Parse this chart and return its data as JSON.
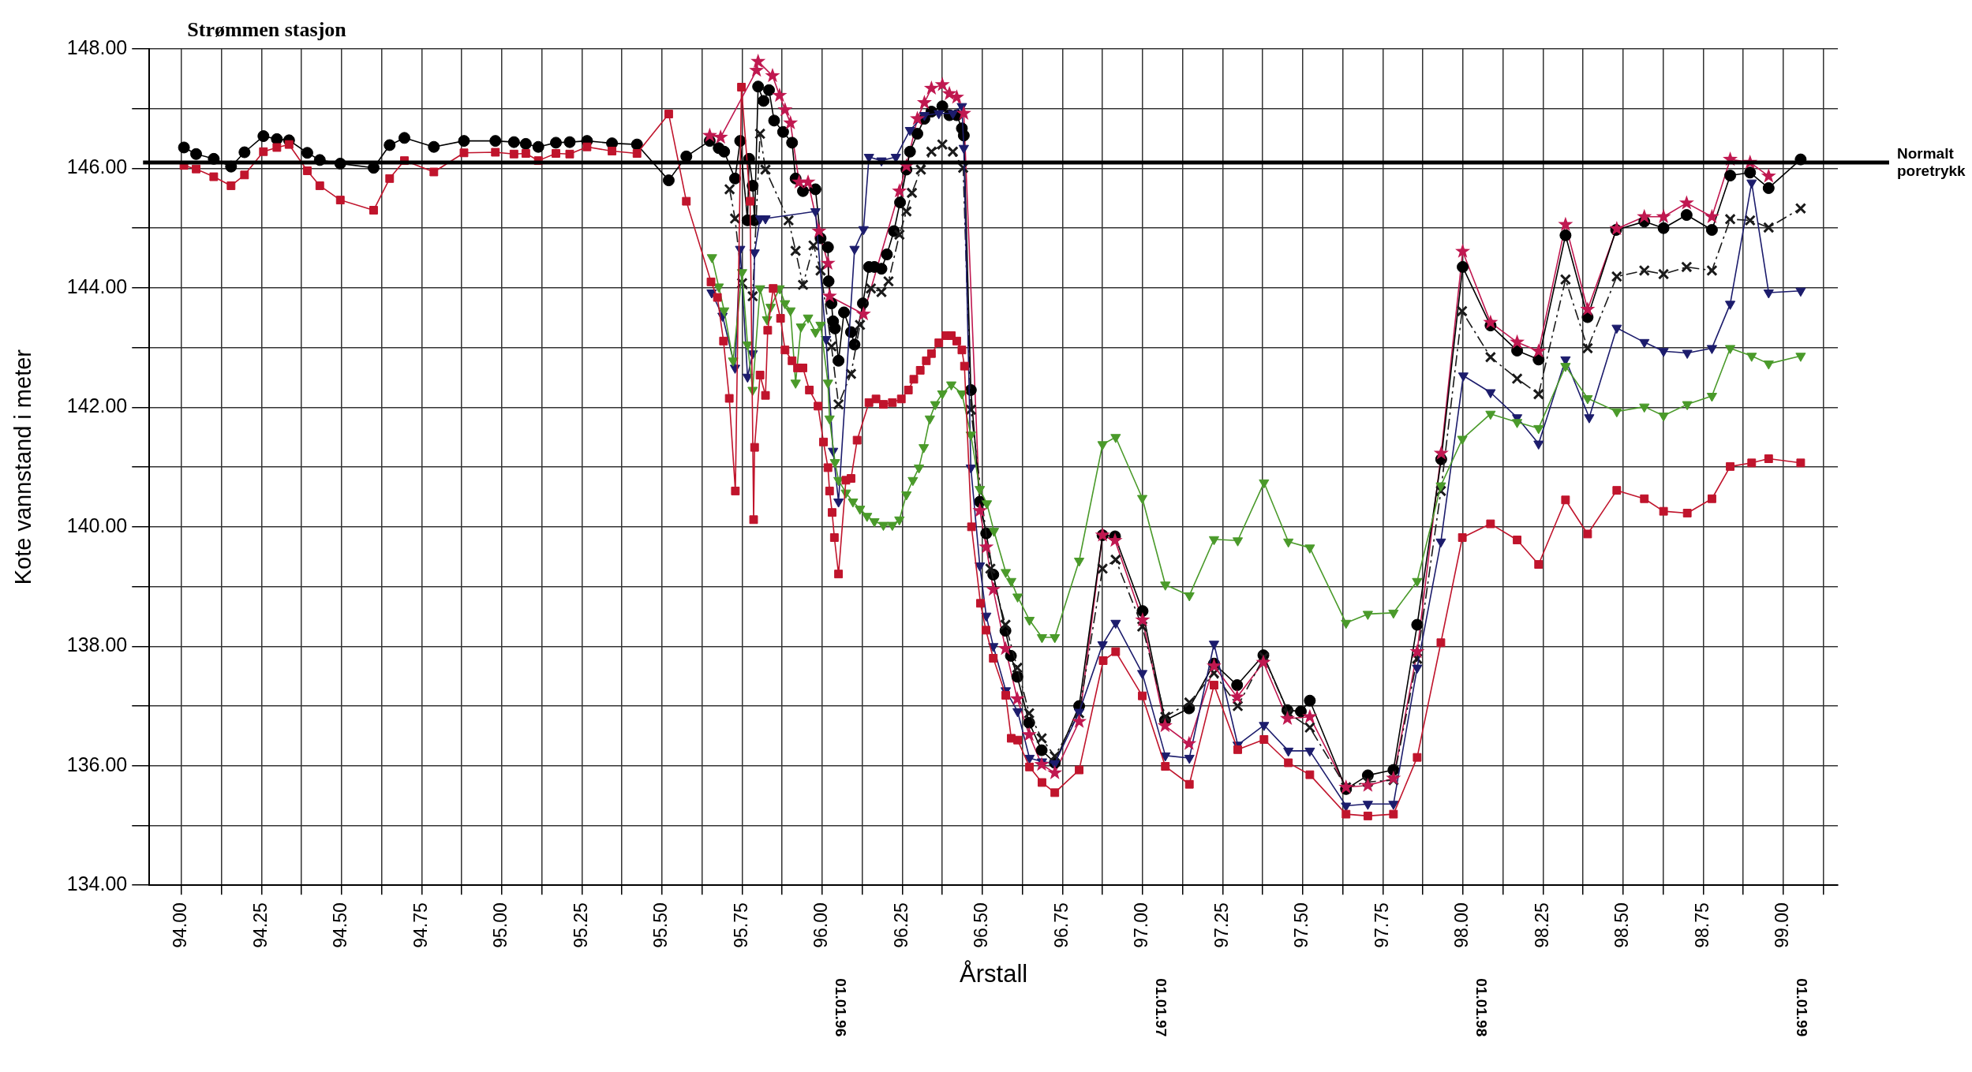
{
  "chart_data": {
    "type": "line",
    "title": "Strømmen stasjon",
    "xlabel": "Årstall",
    "ylabel": "Kote vannstand i meter",
    "xlim": [
      93.9,
      99.17
    ],
    "ylim": [
      134,
      148
    ],
    "xticks": [
      {
        "value": 94,
        "label": "94.00"
      },
      {
        "value": 94.125,
        "label": null
      },
      {
        "value": 94.25,
        "label": "94.25"
      },
      {
        "value": 94.375,
        "label": null
      },
      {
        "value": 94.5,
        "label": "94.50"
      },
      {
        "value": 94.625,
        "label": null
      },
      {
        "value": 94.75,
        "label": "94.75"
      },
      {
        "value": 94.875,
        "label": null
      },
      {
        "value": 95,
        "label": "95.00"
      },
      {
        "value": 95.125,
        "label": null
      },
      {
        "value": 95.25,
        "label": "95.25"
      },
      {
        "value": 95.375,
        "label": null
      },
      {
        "value": 95.5,
        "label": "95.50"
      },
      {
        "value": 95.625,
        "label": null
      },
      {
        "value": 95.75,
        "label": "95.75"
      },
      {
        "value": 95.875,
        "label": null
      },
      {
        "value": 96,
        "label": "96.00"
      },
      {
        "value": 96.125,
        "label": null
      },
      {
        "value": 96.25,
        "label": "96.25"
      },
      {
        "value": 96.375,
        "label": null
      },
      {
        "value": 96.5,
        "label": "96.50"
      },
      {
        "value": 96.625,
        "label": null
      },
      {
        "value": 96.75,
        "label": "96.75"
      },
      {
        "value": 96.875,
        "label": null
      },
      {
        "value": 97,
        "label": "97.00"
      },
      {
        "value": 97.125,
        "label": null
      },
      {
        "value": 97.25,
        "label": "97.25"
      },
      {
        "value": 97.375,
        "label": null
      },
      {
        "value": 97.5,
        "label": "97.50"
      },
      {
        "value": 97.625,
        "label": null
      },
      {
        "value": 97.75,
        "label": "97.75"
      },
      {
        "value": 97.875,
        "label": null
      },
      {
        "value": 98,
        "label": "98.00"
      },
      {
        "value": 98.125,
        "label": null
      },
      {
        "value": 98.25,
        "label": "98.25"
      },
      {
        "value": 98.375,
        "label": null
      },
      {
        "value": 98.5,
        "label": "98.50"
      },
      {
        "value": 98.625,
        "label": null
      },
      {
        "value": 98.75,
        "label": "98.75"
      },
      {
        "value": 98.875,
        "label": null
      },
      {
        "value": 99,
        "label": "99.00"
      },
      {
        "value": 99.125,
        "label": null
      }
    ],
    "yticks": [
      {
        "value": 134,
        "label": "134.00"
      },
      {
        "value": 135,
        "label": null
      },
      {
        "value": 136,
        "label": "136.00"
      },
      {
        "value": 137,
        "label": null
      },
      {
        "value": 138,
        "label": "138.00"
      },
      {
        "value": 139,
        "label": null
      },
      {
        "value": 140,
        "label": "140.00"
      },
      {
        "value": 141,
        "label": null
      },
      {
        "value": 142,
        "label": "142.00"
      },
      {
        "value": 143,
        "label": null
      },
      {
        "value": 144,
        "label": "144.00"
      },
      {
        "value": 145,
        "label": null
      },
      {
        "value": 146,
        "label": "146.00"
      },
      {
        "value": 147,
        "label": null
      },
      {
        "value": 148,
        "label": "148.00"
      }
    ],
    "grid": true,
    "legend": false,
    "ref_lines": [
      {
        "axis": "y",
        "value": 146.1,
        "label": "Normalt poretrykk",
        "color": "#000000"
      }
    ],
    "annotations": [
      "01.01.96",
      "01.01.97",
      "01.01.98",
      "01.01.99"
    ],
    "series": [
      {
        "color": "#c0142c",
        "marker": "square",
        "line_style": "solid",
        "x": [
          94.008,
          94.046,
          94.101,
          94.155,
          94.197,
          94.256,
          94.298,
          94.336,
          94.393,
          94.432,
          94.496,
          94.6,
          94.65,
          94.696,
          94.788,
          94.882,
          94.98,
          95.038,
          95.075,
          95.114,
          95.169,
          95.212,
          95.266,
          95.344,
          95.422,
          95.521,
          95.576,
          95.653,
          95.673,
          95.692,
          95.71,
          95.729,
          95.748,
          95.775,
          95.786,
          95.789,
          95.806,
          95.823,
          95.83,
          95.847,
          95.87,
          95.884,
          95.906,
          95.923,
          95.94,
          95.96,
          95.987,
          96.004,
          96.018,
          96.023,
          96.031,
          96.038,
          96.051,
          96.074,
          96.09,
          96.109,
          96.146,
          96.168,
          96.191,
          96.219,
          96.247,
          96.269,
          96.286,
          96.306,
          96.325,
          96.341,
          96.364,
          96.386,
          96.403,
          96.42,
          96.436,
          96.444,
          96.466,
          96.494,
          96.511,
          96.534,
          96.573,
          96.59,
          96.61,
          96.647,
          96.686,
          96.726,
          96.802,
          96.877,
          96.916,
          96.999,
          97.071,
          97.146,
          97.223,
          97.297,
          97.379,
          97.455,
          97.522,
          97.635,
          97.703,
          97.783,
          97.857,
          97.931,
          97.998,
          98.086,
          98.169,
          98.236,
          98.32,
          98.389,
          98.48,
          98.566,
          98.626,
          98.7,
          98.777,
          98.834,
          98.901,
          98.954,
          99.054
        ],
        "values": [
          146.05,
          145.99,
          145.86,
          145.71,
          145.89,
          146.28,
          146.35,
          146.4,
          145.96,
          145.71,
          145.47,
          145.3,
          145.83,
          146.13,
          145.94,
          146.26,
          146.27,
          146.24,
          146.25,
          146.13,
          146.25,
          146.24,
          146.36,
          146.29,
          146.25,
          146.91,
          145.45,
          144.1,
          143.84,
          143.11,
          142.15,
          140.6,
          147.36,
          145.45,
          140.12,
          141.33,
          142.54,
          142.2,
          143.29,
          143.99,
          143.49,
          142.96,
          142.78,
          142.66,
          142.66,
          142.29,
          142.02,
          141.42,
          140.99,
          140.6,
          140.24,
          139.82,
          139.21,
          140.78,
          140.81,
          141.45,
          142.08,
          142.14,
          142.05,
          142.08,
          142.14,
          142.29,
          142.47,
          142.62,
          142.78,
          142.9,
          143.08,
          143.2,
          143.2,
          143.11,
          142.96,
          142.69,
          140,
          138.72,
          138.27,
          137.8,
          137.18,
          136.46,
          136.43,
          135.98,
          135.72,
          135.55,
          135.93,
          137.76,
          137.91,
          137.17,
          135.99,
          135.69,
          137.35,
          136.27,
          136.44,
          136.05,
          135.85,
          135.19,
          135.16,
          135.19,
          136.14,
          138.06,
          139.82,
          140.05,
          139.78,
          139.37,
          140.45,
          139.88,
          140.61,
          140.47,
          140.26,
          140.23,
          140.47,
          141.01,
          141.07,
          141.14,
          141.07
        ]
      },
      {
        "color": "#4a9a2a",
        "marker": "triangle",
        "line_style": "solid",
        "x": [
          95.656,
          95.677,
          95.694,
          95.722,
          95.75,
          95.767,
          95.783,
          95.806,
          95.828,
          95.839,
          95.867,
          95.884,
          95.901,
          95.917,
          95.934,
          95.956,
          95.979,
          95.995,
          96.018,
          96.023,
          96.04,
          96.051,
          96.074,
          96.096,
          96.118,
          96.14,
          96.163,
          96.191,
          96.219,
          96.241,
          96.263,
          96.283,
          96.302,
          96.317,
          96.336,
          96.353,
          96.375,
          96.403,
          96.436,
          96.464,
          96.492,
          96.514,
          96.536,
          96.573,
          96.59,
          96.61,
          96.647,
          96.686,
          96.726,
          96.802,
          96.875,
          96.916,
          96.999,
          97.071,
          97.146,
          97.223,
          97.297,
          97.379,
          97.455,
          97.522,
          97.635,
          97.703,
          97.783,
          97.857,
          97.931,
          97.998,
          98.086,
          98.169,
          98.236,
          98.32,
          98.389,
          98.48,
          98.566,
          98.626,
          98.7,
          98.777,
          98.834,
          98.901,
          98.954,
          99.054
        ],
        "values": [
          144.51,
          144.02,
          143.62,
          142.78,
          144.26,
          143.05,
          142.29,
          143.99,
          143.47,
          143.68,
          143.99,
          143.74,
          143.62,
          142.41,
          143.35,
          143.5,
          143.26,
          143.38,
          142.41,
          141.81,
          141.08,
          140.78,
          140.57,
          140.42,
          140.3,
          140.18,
          140.09,
          140.03,
          140.03,
          140.12,
          140.54,
          140.78,
          140.99,
          141.33,
          141.81,
          142.05,
          142.23,
          142.38,
          142.23,
          141.54,
          140.63,
          140.39,
          139.93,
          139.24,
          139.09,
          138.83,
          138.44,
          138.15,
          138.15,
          139.43,
          141.38,
          141.5,
          140.48,
          139.03,
          138.85,
          139.79,
          139.77,
          140.74,
          139.75,
          139.65,
          138.39,
          138.54,
          138.56,
          139.09,
          140.69,
          141.47,
          141.89,
          141.75,
          141.65,
          142.69,
          142.15,
          141.93,
          142.01,
          141.86,
          142.05,
          142.19,
          142.99,
          142.86,
          142.73,
          142.86
        ]
      },
      {
        "color": "#1c1c6c",
        "marker": "triangle",
        "line_style": "solid",
        "x": [
          95.655,
          95.689,
          95.728,
          95.744,
          95.767,
          95.783,
          95.789,
          95.806,
          95.823,
          95.979,
          96.012,
          96.034,
          96.051,
          96.101,
          96.129,
          96.146,
          96.185,
          96.23,
          96.274,
          96.319,
          96.364,
          96.408,
          96.436,
          96.442,
          96.464,
          96.492,
          96.512,
          96.534,
          96.573,
          96.61,
          96.647,
          96.686,
          96.726,
          96.802,
          96.875,
          96.916,
          96.999,
          97.071,
          97.146,
          97.223,
          97.297,
          97.379,
          97.455,
          97.522,
          97.635,
          97.703,
          97.783,
          97.857,
          97.931,
          98.001,
          98.086,
          98.169,
          98.236,
          98.32,
          98.394,
          98.48,
          98.566,
          98.626,
          98.7,
          98.777,
          98.834,
          98.901,
          98.954,
          99.054
        ],
        "values": [
          143.92,
          143.53,
          142.66,
          144.65,
          142.51,
          142.9,
          144.59,
          145.16,
          145.16,
          145.28,
          143.14,
          141.27,
          140.42,
          144.65,
          144.98,
          146.19,
          146.13,
          146.19,
          146.64,
          146.89,
          146.92,
          146.92,
          147.04,
          146.34,
          140.99,
          139.35,
          138.51,
          138,
          137.26,
          136.91,
          136.13,
          136.07,
          136.04,
          136.9,
          138.03,
          138.39,
          137.55,
          136.17,
          136.13,
          138.04,
          136.35,
          136.68,
          136.25,
          136.25,
          135.33,
          135.36,
          135.36,
          137.64,
          139.75,
          142.53,
          142.25,
          141.83,
          141.39,
          142.8,
          141.83,
          143.33,
          143.09,
          142.94,
          142.91,
          142.99,
          143.73,
          145.76,
          143.92,
          143.95
        ]
      },
      {
        "color": "#1a1a1a",
        "marker": "cross",
        "line_style": "dashed",
        "x": [
          95.711,
          95.728,
          95.75,
          95.783,
          95.806,
          95.823,
          95.895,
          95.917,
          95.94,
          95.973,
          95.995,
          96.029,
          96.051,
          96.09,
          96.118,
          96.152,
          96.185,
          96.207,
          96.241,
          96.263,
          96.28,
          96.308,
          96.341,
          96.375,
          96.408,
          96.44,
          96.464,
          96.525,
          96.572,
          96.609,
          96.646,
          96.685,
          96.726,
          96.802,
          96.875,
          96.916,
          96.999,
          97.071,
          97.146,
          97.223,
          97.297,
          97.379,
          97.455,
          97.522,
          97.635,
          97.703,
          97.783,
          97.857,
          97.931,
          97.997,
          98.086,
          98.169,
          98.236,
          98.32,
          98.389,
          98.48,
          98.566,
          98.626,
          98.698,
          98.777,
          98.834,
          98.896,
          98.954,
          99.054
        ],
        "values": [
          145.65,
          145.16,
          144.08,
          143.86,
          146.58,
          145.98,
          145.13,
          144.62,
          144.05,
          144.71,
          144.29,
          143.02,
          142.05,
          142.56,
          143.38,
          143.99,
          143.93,
          144.11,
          144.89,
          145.28,
          145.59,
          145.98,
          146.28,
          146.4,
          146.28,
          146.01,
          141.96,
          139.3,
          138.36,
          137.64,
          136.88,
          136.46,
          136.16,
          136.88,
          139.3,
          139.45,
          138.33,
          136.82,
          137.06,
          137.55,
          137,
          137.82,
          136.88,
          136.64,
          135.64,
          135.73,
          135.76,
          137.79,
          140.6,
          143.61,
          142.84,
          142.48,
          142.22,
          144.14,
          142.99,
          144.19,
          144.29,
          144.23,
          144.35,
          144.29,
          145.15,
          145.13,
          145.01,
          145.33
        ]
      },
      {
        "color": "#000000",
        "marker": "circle",
        "line_style": "solid",
        "x": [
          94.008,
          94.046,
          94.101,
          94.155,
          94.197,
          94.256,
          94.298,
          94.336,
          94.393,
          94.432,
          94.496,
          94.6,
          94.65,
          94.696,
          94.788,
          94.882,
          94.98,
          95.038,
          95.075,
          95.114,
          95.169,
          95.212,
          95.266,
          95.344,
          95.422,
          95.521,
          95.576,
          95.649,
          95.677,
          95.694,
          95.728,
          95.744,
          95.767,
          95.772,
          95.783,
          95.789,
          95.8,
          95.817,
          95.834,
          95.85,
          95.878,
          95.906,
          95.917,
          95.94,
          95.979,
          95.995,
          96.018,
          96.02,
          96.029,
          96.034,
          96.04,
          96.051,
          96.068,
          96.09,
          96.101,
          96.127,
          96.146,
          96.163,
          96.185,
          96.202,
          96.224,
          96.243,
          96.263,
          96.274,
          96.297,
          96.319,
          96.341,
          96.375,
          96.397,
          96.42,
          96.436,
          96.442,
          96.464,
          96.492,
          96.512,
          96.534,
          96.572,
          96.589,
          96.609,
          96.646,
          96.685,
          96.726,
          96.802,
          96.875,
          96.914,
          97,
          97.07,
          97.145,
          97.223,
          97.295,
          97.377,
          97.452,
          97.494,
          97.522,
          97.635,
          97.703,
          97.783,
          97.857,
          97.932,
          97.999,
          98.086,
          98.169,
          98.236,
          98.32,
          98.389,
          98.478,
          98.566,
          98.626,
          98.698,
          98.777,
          98.834,
          98.896,
          98.954,
          99.054
        ],
        "values": [
          146.35,
          146.24,
          146.16,
          146.03,
          146.27,
          146.54,
          146.49,
          146.47,
          146.26,
          146.14,
          146.08,
          146.01,
          146.39,
          146.51,
          146.36,
          146.46,
          146.46,
          146.44,
          146.41,
          146.36,
          146.43,
          146.44,
          146.46,
          146.42,
          146.4,
          145.8,
          146.2,
          146.46,
          146.34,
          146.28,
          145.83,
          146.46,
          145.13,
          146.16,
          145.71,
          145.13,
          147.37,
          147.13,
          147.31,
          146.8,
          146.61,
          146.43,
          145.83,
          145.62,
          145.65,
          144.83,
          144.68,
          144.11,
          143.74,
          143.44,
          143.32,
          142.78,
          143.59,
          143.26,
          143.05,
          143.74,
          144.35,
          144.35,
          144.32,
          144.56,
          144.95,
          145.43,
          145.98,
          146.28,
          146.58,
          146.83,
          146.95,
          147.04,
          146.89,
          146.89,
          146.67,
          146.55,
          142.29,
          140.42,
          139.89,
          139.2,
          138.26,
          137.84,
          137.49,
          136.72,
          136.26,
          136.05,
          137,
          139.86,
          139.84,
          138.59,
          136.76,
          136.96,
          137.71,
          137.35,
          137.85,
          136.93,
          136.91,
          137.09,
          135.61,
          135.84,
          135.93,
          138.36,
          141.13,
          144.35,
          143.37,
          142.95,
          142.8,
          144.88,
          143.51,
          144.97,
          145.11,
          145,
          145.22,
          144.97,
          145.88,
          145.93,
          145.67,
          146.15
        ]
      },
      {
        "color": "#c01850",
        "marker": "star",
        "line_style": "solid",
        "x": [
          95.649,
          95.683,
          95.795,
          95.8,
          95.845,
          95.867,
          95.884,
          95.901,
          95.928,
          95.956,
          95.99,
          96.018,
          96.023,
          96.129,
          96.241,
          96.263,
          96.297,
          96.319,
          96.341,
          96.375,
          96.397,
          96.42,
          96.442,
          96.492,
          96.512,
          96.534,
          96.572,
          96.609,
          96.646,
          96.685,
          96.726,
          96.802,
          96.875,
          96.914,
          97,
          97.07,
          97.145,
          97.223,
          97.295,
          97.377,
          97.452,
          97.522,
          97.635,
          97.703,
          97.783,
          97.857,
          97.932,
          97.999,
          98.086,
          98.169,
          98.236,
          98.32,
          98.389,
          98.48,
          98.566,
          98.626,
          98.698,
          98.777,
          98.834,
          98.896,
          98.954
        ],
        "values": [
          146.55,
          146.52,
          147.64,
          147.79,
          147.55,
          147.22,
          146.98,
          146.76,
          145.77,
          145.77,
          144.95,
          144.41,
          143.86,
          143.56,
          145.62,
          146.04,
          146.83,
          147.1,
          147.34,
          147.4,
          147.25,
          147.19,
          146.92,
          140.27,
          139.66,
          138.95,
          137.96,
          137.12,
          136.52,
          136.02,
          135.88,
          136.74,
          139.86,
          139.77,
          138.44,
          136.67,
          136.37,
          137.67,
          137.15,
          137.73,
          136.79,
          136.82,
          135.64,
          135.67,
          135.79,
          137.91,
          141.23,
          144.61,
          143.42,
          143.09,
          142.94,
          145.06,
          143.64,
          144.99,
          145.19,
          145.19,
          145.42,
          145.19,
          146.15,
          146.1,
          145.87
        ]
      }
    ]
  }
}
